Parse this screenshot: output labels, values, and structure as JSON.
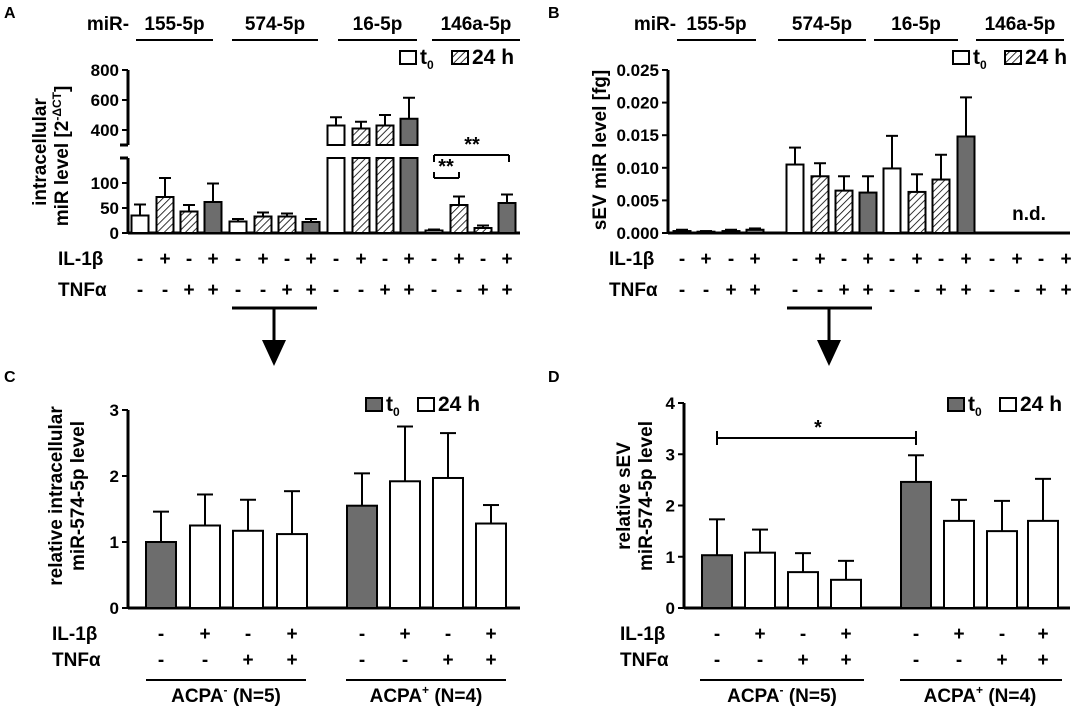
{
  "colors": {
    "open": "#ffffff",
    "hatched": "#ffffff",
    "dark": "#6d6d6d",
    "ink": "#000000"
  },
  "chart_data": [
    {
      "panel": "A",
      "type": "bar",
      "mir_prefix": "miR-",
      "groups": [
        "155-5p",
        "574-5p",
        "16-5p",
        "146a-5p"
      ],
      "ylabel": [
        "intracellular",
        "miR level [2"
      ],
      "ylabel_sup": "-ΔCT",
      "ylabel_tail": "]",
      "legend": [
        {
          "label": "t",
          "sub": "0",
          "style": "open"
        },
        {
          "label": "24 h",
          "style": "hatched"
        }
      ],
      "yticks": [
        "0",
        "50",
        "100",
        "400",
        "600",
        "800"
      ],
      "ylim_lower": [
        0,
        150
      ],
      "ylim_upper": [
        300,
        800
      ],
      "row_labels": [
        "IL-1β",
        "TNFα"
      ],
      "il1b": [
        "-",
        "+",
        "-",
        "+",
        "-",
        "+",
        "-",
        "+",
        "-",
        "+",
        "-",
        "+",
        "-",
        "+",
        "-",
        "+"
      ],
      "tnfa": [
        "-",
        "-",
        "+",
        "+",
        "-",
        "-",
        "+",
        "+",
        "-",
        "-",
        "+",
        "+",
        "-",
        "-",
        "+",
        "+"
      ],
      "styles": [
        "open",
        "hatched",
        "hatched",
        "dark",
        "open",
        "hatched",
        "hatched",
        "dark",
        "open",
        "hatched",
        "hatched",
        "dark",
        "open",
        "hatched",
        "hatched",
        "dark"
      ],
      "values": [
        35,
        72,
        43,
        62,
        23,
        33,
        33,
        22,
        430,
        410,
        430,
        475,
        5,
        56,
        10,
        60
      ],
      "errors": [
        22,
        38,
        13,
        37,
        5,
        8,
        6,
        6,
        55,
        45,
        70,
        140,
        2,
        17,
        5,
        17
      ],
      "significance": [
        "**",
        "**"
      ]
    },
    {
      "panel": "B",
      "type": "bar",
      "mir_prefix": "miR-",
      "groups": [
        "155-5p",
        "574-5p",
        "16-5p",
        "146a-5p"
      ],
      "ylabel": "sEV miR level [fg]",
      "legend": [
        {
          "label": "t",
          "sub": "0",
          "style": "open"
        },
        {
          "label": "24 h",
          "style": "hatched"
        }
      ],
      "yticks": [
        "0.000",
        "0.005",
        "0.010",
        "0.015",
        "0.020",
        "0.025"
      ],
      "ylim": [
        0,
        0.025
      ],
      "row_labels": [
        "IL-1β",
        "TNFα"
      ],
      "il1b": [
        "-",
        "+",
        "-",
        "+",
        "-",
        "+",
        "-",
        "+",
        "-",
        "+",
        "-",
        "+",
        "-",
        "+",
        "-",
        "+"
      ],
      "tnfa": [
        "-",
        "-",
        "+",
        "+",
        "-",
        "-",
        "+",
        "+",
        "-",
        "-",
        "+",
        "+",
        "-",
        "-",
        "+",
        "+"
      ],
      "styles": [
        "open",
        "hatched",
        "hatched",
        "dark",
        "open",
        "hatched",
        "hatched",
        "dark",
        "open",
        "hatched",
        "hatched",
        "dark",
        "open",
        "hatched",
        "hatched",
        "dark"
      ],
      "values": [
        0.0003,
        0.0002,
        0.0003,
        0.0005,
        0.0105,
        0.0087,
        0.0065,
        0.0062,
        0.0099,
        0.0063,
        0.0082,
        0.0148,
        0,
        0,
        0,
        0
      ],
      "errors": [
        0.0002,
        0.0001,
        0.0002,
        0.0002,
        0.0026,
        0.002,
        0.0022,
        0.0025,
        0.005,
        0.0027,
        0.0038,
        0.006,
        0,
        0,
        0,
        0
      ],
      "annotation": "n.d."
    },
    {
      "panel": "C",
      "type": "bar",
      "ylabel": [
        "relative intracellular",
        "miR-574-5p level"
      ],
      "legend": [
        {
          "label": "t",
          "sub": "0",
          "style": "dark"
        },
        {
          "label": "24 h",
          "style": "open"
        }
      ],
      "yticks": [
        "0",
        "1",
        "2",
        "3"
      ],
      "ylim": [
        0,
        3
      ],
      "row_labels": [
        "IL-1β",
        "TNFα"
      ],
      "il1b": [
        "-",
        "+",
        "-",
        "+",
        "-",
        "+",
        "-",
        "+"
      ],
      "tnfa": [
        "-",
        "-",
        "+",
        "+",
        "-",
        "-",
        "+",
        "+"
      ],
      "styles": [
        "dark",
        "open",
        "open",
        "open",
        "dark",
        "open",
        "open",
        "open"
      ],
      "values": [
        1.0,
        1.25,
        1.17,
        1.12,
        1.55,
        1.92,
        1.97,
        1.28
      ],
      "errors": [
        0.46,
        0.47,
        0.47,
        0.65,
        0.49,
        0.83,
        0.68,
        0.28
      ],
      "cohorts": [
        {
          "name": "ACPA",
          "sup": "-",
          "n": " (N=5)"
        },
        {
          "name": "ACPA",
          "sup": "+",
          "n": " (N=4)"
        }
      ]
    },
    {
      "panel": "D",
      "type": "bar",
      "ylabel": [
        "relative sEV",
        "miR-574-5p level"
      ],
      "legend": [
        {
          "label": "t",
          "sub": "0",
          "style": "dark"
        },
        {
          "label": "24 h",
          "style": "open"
        }
      ],
      "yticks": [
        "0",
        "1",
        "2",
        "3",
        "4"
      ],
      "ylim": [
        0,
        4
      ],
      "row_labels": [
        "IL-1β",
        "TNFα"
      ],
      "il1b": [
        "-",
        "+",
        "-",
        "+",
        "-",
        "+",
        "-",
        "+"
      ],
      "tnfa": [
        "-",
        "-",
        "+",
        "+",
        "-",
        "-",
        "+",
        "+"
      ],
      "styles": [
        "dark",
        "open",
        "open",
        "open",
        "dark",
        "open",
        "open",
        "open"
      ],
      "values": [
        1.03,
        1.08,
        0.7,
        0.55,
        2.46,
        1.7,
        1.5,
        1.7
      ],
      "errors": [
        0.7,
        0.45,
        0.37,
        0.37,
        0.52,
        0.41,
        0.59,
        0.82
      ],
      "cohorts": [
        {
          "name": "ACPA",
          "sup": "-",
          "n": " (N=5)"
        },
        {
          "name": "ACPA",
          "sup": "+",
          "n": " (N=4)"
        }
      ],
      "significance": [
        "*"
      ]
    }
  ]
}
